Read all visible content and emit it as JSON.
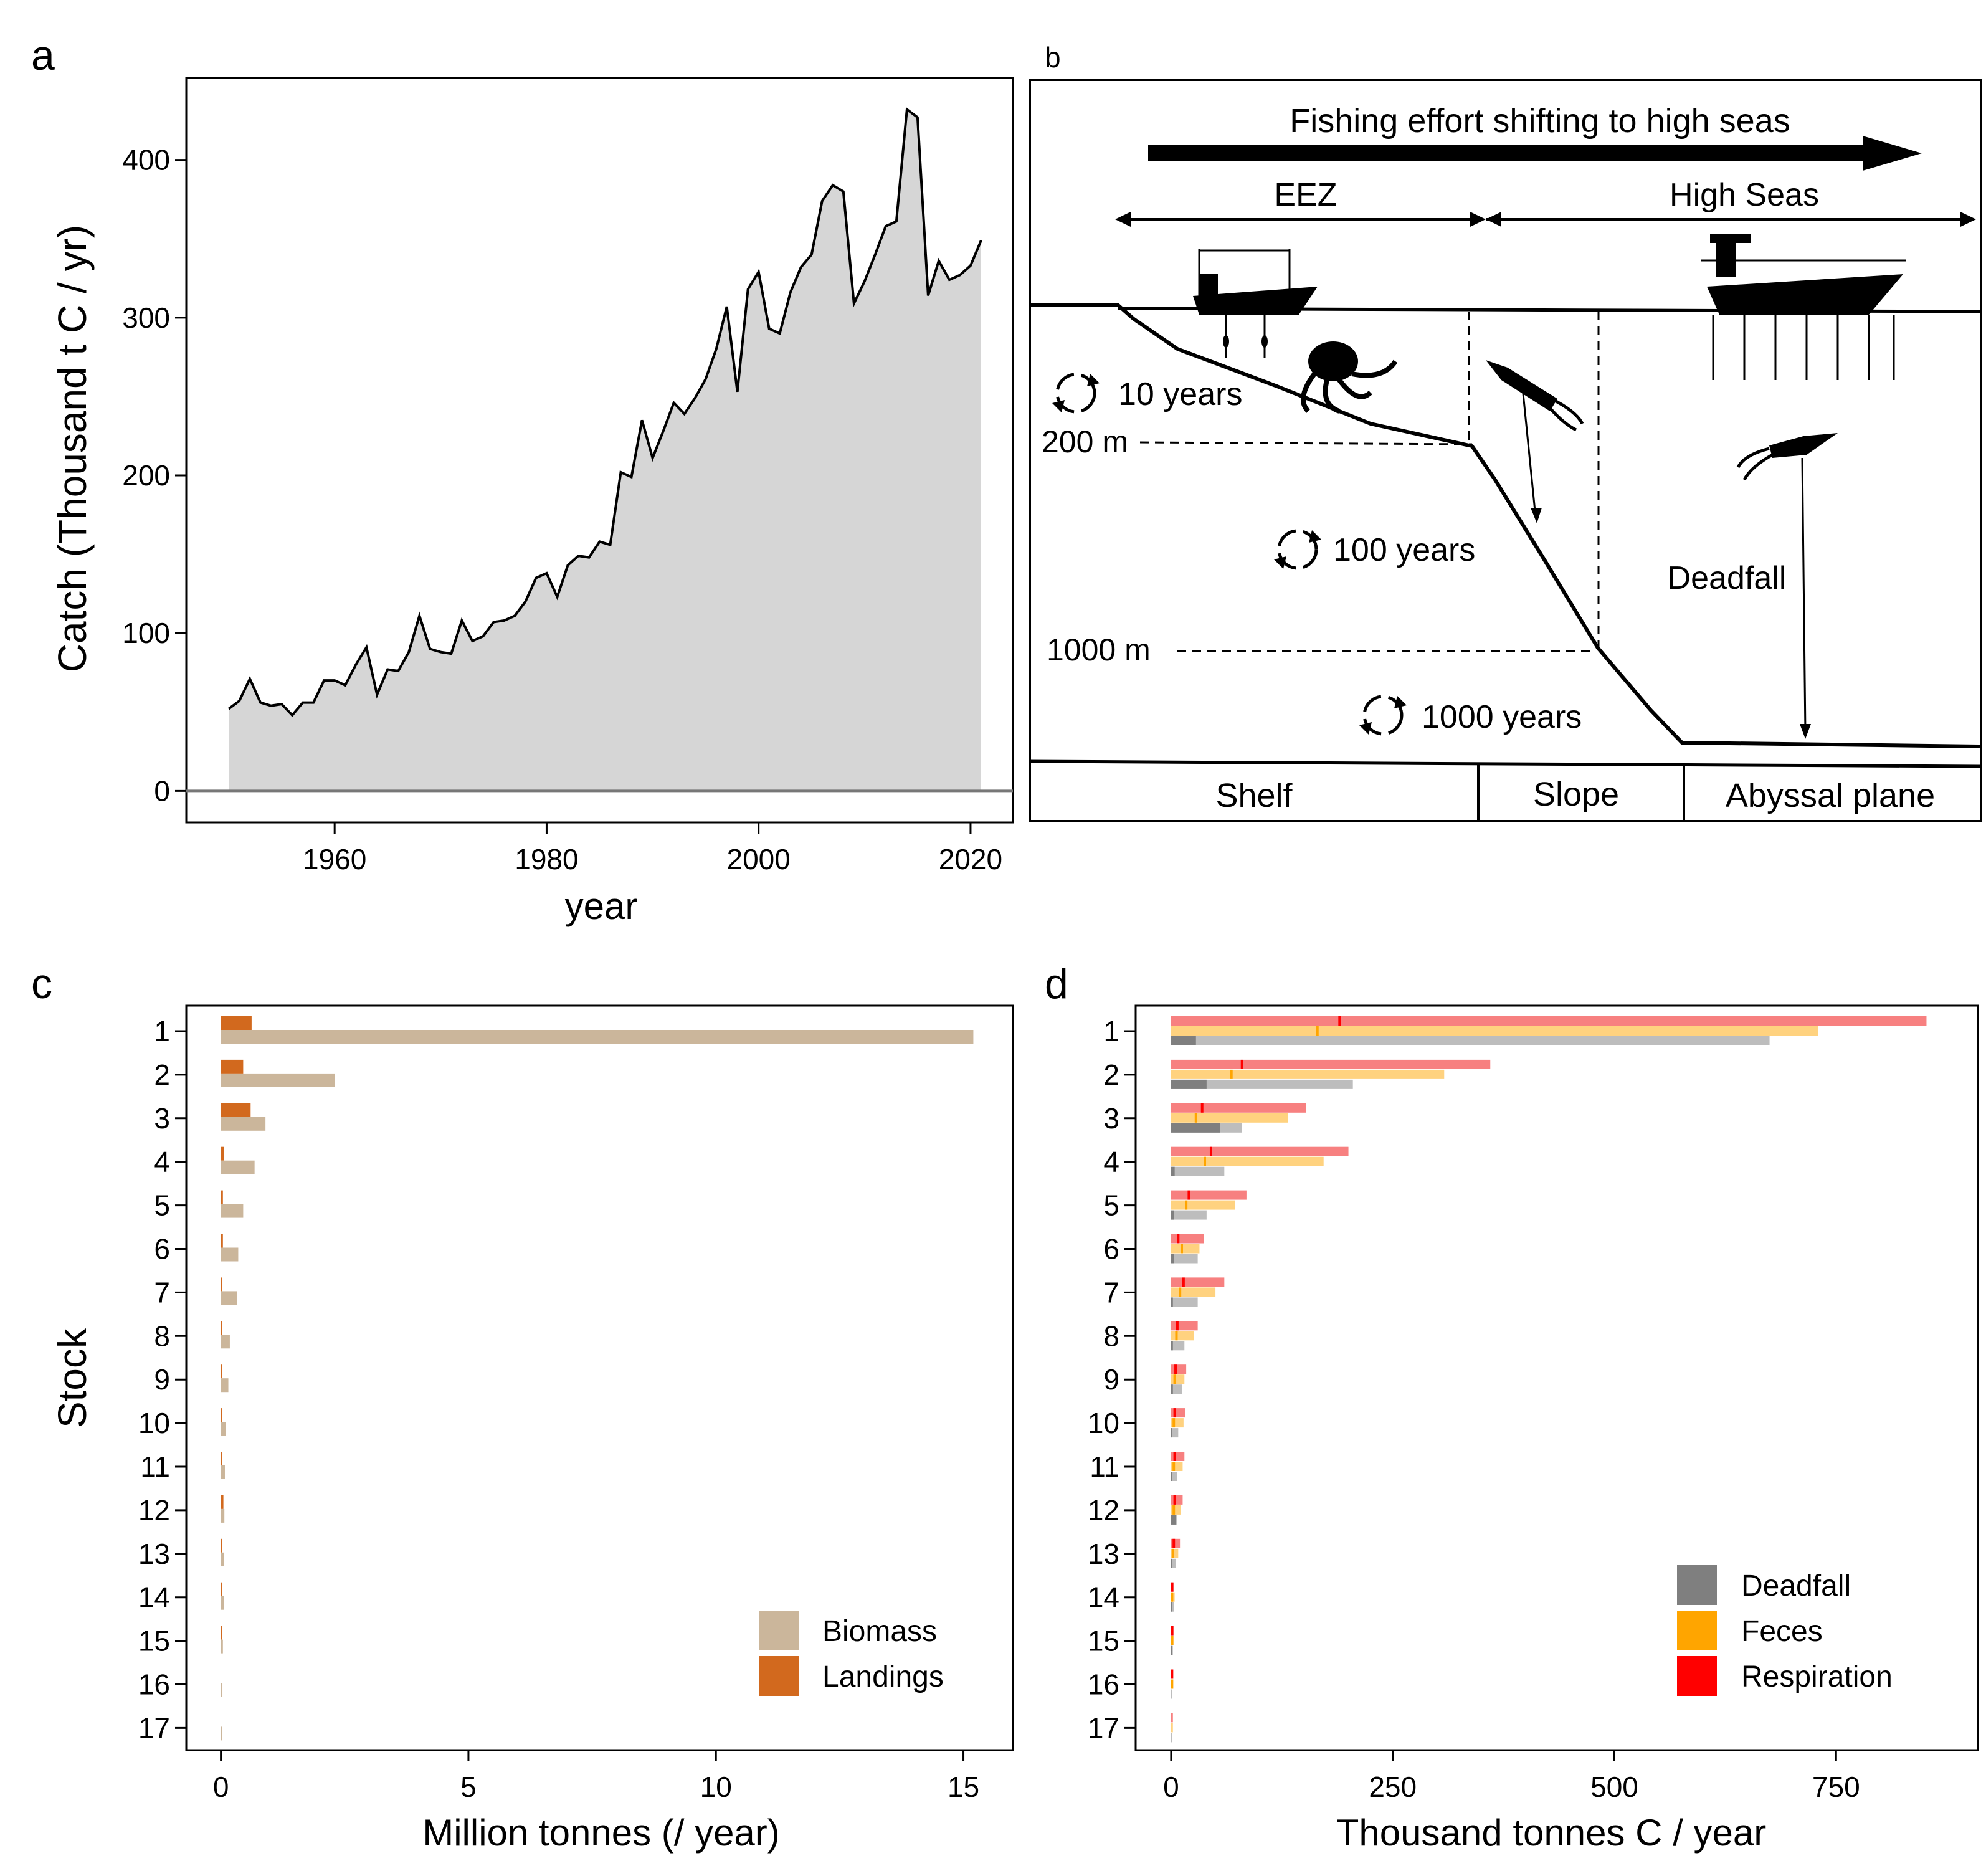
{
  "panel_labels": {
    "a": "a",
    "b": "b",
    "c": "c",
    "d": "d"
  },
  "colors": {
    "area_fill": "#d6d6d6",
    "biomass": "#cbb69b",
    "landings": "#d2691e",
    "deadfall": "#7f7f7f",
    "deadfall_light": "#bdbdbd",
    "feces": "#ffa500",
    "feces_light": "#ffd27f",
    "respiration": "#ff0000",
    "respiration_light": "#f78080"
  },
  "panel_b": {
    "arrow_label": "Fishing effort shifting to high seas",
    "eez": "EEZ",
    "high_seas": "High Seas",
    "t10": "10 years",
    "t100": "100 years",
    "t1000": "1000 years",
    "d200": "200 m",
    "d1000": "1000 m",
    "deadfall": "Deadfall",
    "zones": [
      "Shelf",
      "Slope",
      "Abyssal plane"
    ]
  },
  "chart_data": [
    {
      "id": "a",
      "type": "area",
      "title": "",
      "xlabel": "year",
      "ylabel": "Catch (Thousand t C / yr)",
      "xlim": [
        1946,
        2024
      ],
      "ylim": [
        -20,
        452
      ],
      "xticks": [
        1960,
        1980,
        2000,
        2020
      ],
      "yticks": [
        0,
        100,
        200,
        300,
        400
      ],
      "x": [
        1950,
        1951,
        1952,
        1953,
        1954,
        1955,
        1956,
        1957,
        1958,
        1959,
        1960,
        1961,
        1962,
        1963,
        1964,
        1965,
        1966,
        1967,
        1968,
        1969,
        1970,
        1971,
        1972,
        1973,
        1974,
        1975,
        1976,
        1977,
        1978,
        1979,
        1980,
        1981,
        1982,
        1983,
        1984,
        1985,
        1986,
        1987,
        1988,
        1989,
        1990,
        1991,
        1992,
        1993,
        1994,
        1995,
        1996,
        1997,
        1998,
        1999,
        2000,
        2001,
        2002,
        2003,
        2004,
        2005,
        2006,
        2007,
        2008,
        2009,
        2010,
        2011,
        2012,
        2013,
        2014,
        2015,
        2016,
        2017,
        2018,
        2019,
        2020,
        2021
      ],
      "y": [
        52,
        57,
        71,
        56,
        54,
        55,
        48,
        56,
        56,
        70,
        70,
        67,
        80,
        91,
        61,
        77,
        76,
        88,
        111,
        90,
        88,
        87,
        108,
        95,
        98,
        107,
        108,
        111,
        120,
        135,
        138,
        123,
        143,
        149,
        148,
        158,
        156,
        202,
        199,
        235,
        211,
        228,
        246,
        239,
        249,
        261,
        280,
        307,
        253,
        318,
        329,
        293,
        290,
        316,
        332,
        340,
        374,
        384,
        380,
        309,
        323,
        340,
        358,
        361,
        432,
        427,
        314,
        336,
        324,
        327,
        333,
        349
      ]
    },
    {
      "id": "c",
      "type": "bar",
      "orientation": "horizontal",
      "xlabel": "Million tonnes (/ year)",
      "ylabel": "Stock",
      "xlim": [
        -0.7,
        16.0
      ],
      "xticks": [
        0,
        5,
        10,
        15
      ],
      "categories": [
        "1",
        "2",
        "3",
        "4",
        "5",
        "6",
        "7",
        "8",
        "9",
        "10",
        "11",
        "12",
        "13",
        "14",
        "15",
        "16",
        "17"
      ],
      "legend": "bottom-right",
      "series": [
        {
          "name": "Biomass",
          "values": [
            15.2,
            2.3,
            0.9,
            0.68,
            0.45,
            0.35,
            0.33,
            0.18,
            0.15,
            0.1,
            0.08,
            0.07,
            0.06,
            0.06,
            0.04,
            0.03,
            0.02
          ]
        },
        {
          "name": "Landings",
          "values": [
            0.62,
            0.45,
            0.6,
            0.06,
            0.04,
            0.04,
            0.03,
            0.02,
            0.02,
            0.02,
            0.02,
            0.05,
            0.01,
            0.01,
            0.01,
            0.0,
            0.0
          ]
        }
      ]
    },
    {
      "id": "d",
      "type": "bar",
      "orientation": "horizontal",
      "xlabel": "Thousand tonnes C / year",
      "xlim": [
        -40,
        910
      ],
      "xticks": [
        0,
        250,
        500,
        750
      ],
      "categories": [
        "1",
        "2",
        "3",
        "4",
        "5",
        "6",
        "7",
        "8",
        "9",
        "10",
        "11",
        "12",
        "13",
        "14",
        "15",
        "16",
        "17"
      ],
      "legend": "bottom-right",
      "series": [
        {
          "name": "Deadfall",
          "values": [
            675,
            205,
            80,
            60,
            40,
            30,
            30,
            15,
            12,
            8,
            7,
            6,
            5,
            3,
            2,
            1,
            1
          ],
          "marker": [
            28,
            40,
            55,
            4,
            3,
            3,
            2,
            2,
            2,
            1,
            1,
            6,
            1,
            1,
            1,
            0,
            0
          ]
        },
        {
          "name": "Feces",
          "values": [
            730,
            308,
            132,
            172,
            72,
            32,
            50,
            26,
            15,
            14,
            13,
            11,
            8,
            4,
            3,
            2,
            2
          ],
          "marker": [
            165,
            68,
            28,
            38,
            17,
            12,
            10,
            6,
            4,
            3,
            3,
            3,
            2,
            1,
            1,
            1,
            0
          ]
        },
        {
          "name": "Respiration",
          "values": [
            852,
            360,
            152,
            200,
            85,
            37,
            60,
            30,
            17,
            16,
            15,
            13,
            10,
            3,
            3,
            2,
            2
          ],
          "marker": [
            190,
            80,
            35,
            45,
            20,
            8,
            14,
            7,
            5,
            4,
            4,
            4,
            3,
            1,
            1,
            1,
            0
          ]
        }
      ]
    }
  ]
}
